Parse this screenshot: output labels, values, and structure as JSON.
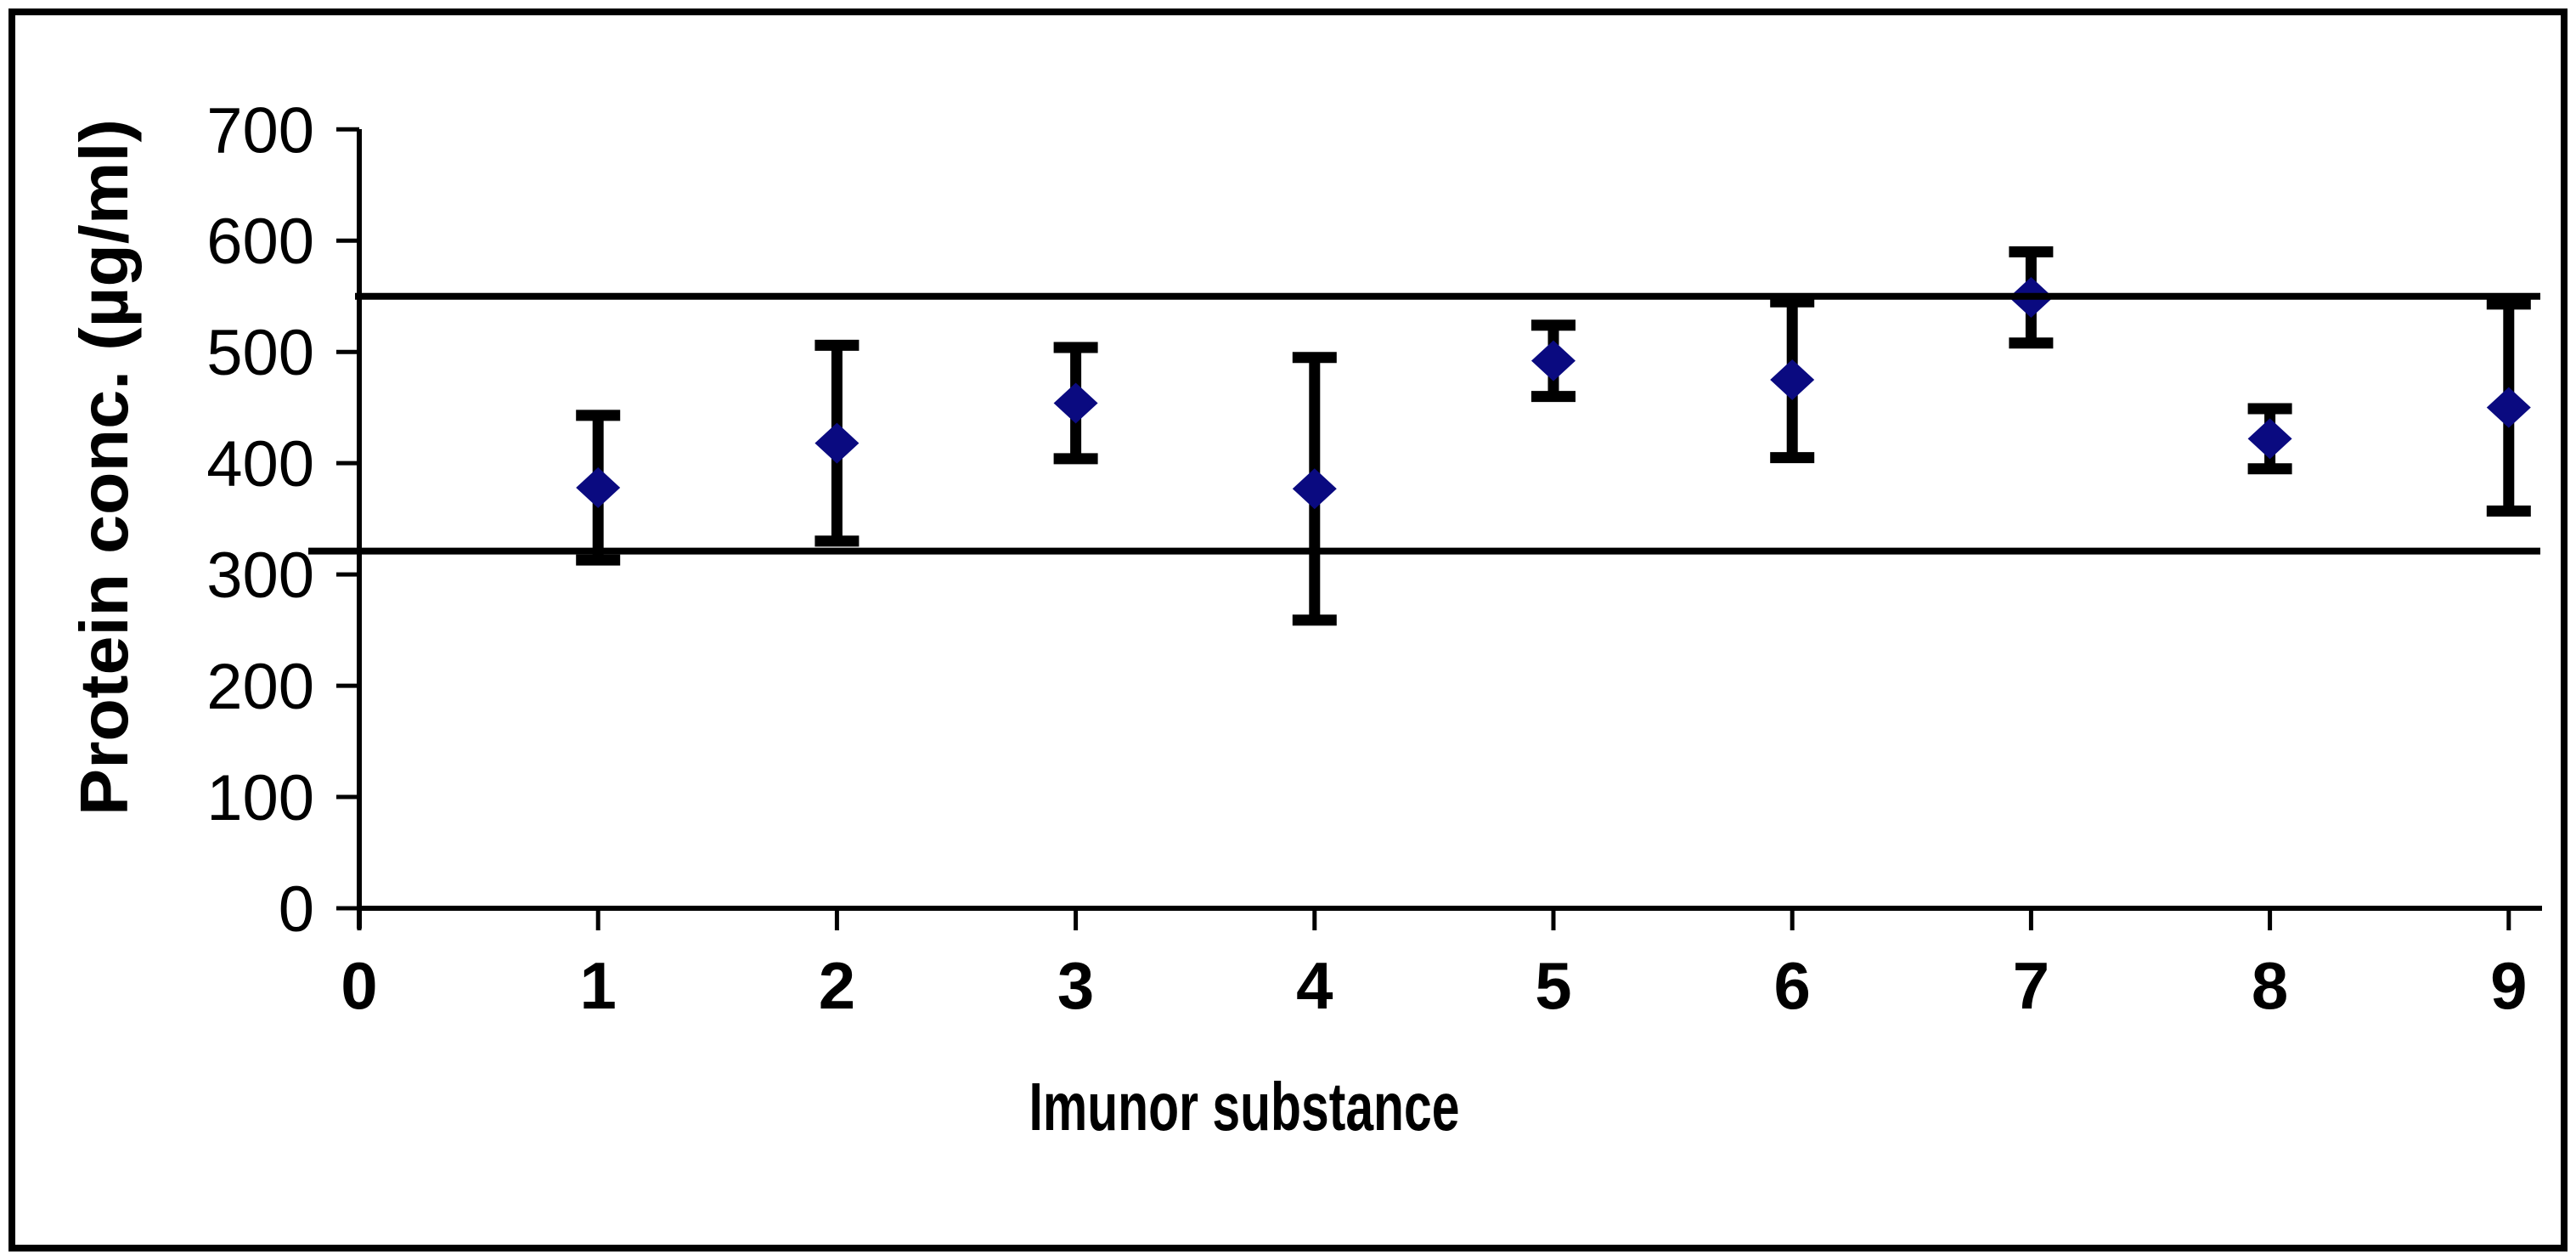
{
  "figure": {
    "background_color": "#ffffff",
    "border_color": "#000000",
    "axis_color": "#000000"
  },
  "chart_data": {
    "type": "scatter",
    "title": "",
    "xlabel": "Imunor substance",
    "ylabel": "Protein conc. (µg/ml)",
    "xlim": [
      0,
      9.14
    ],
    "ylim": [
      0,
      700
    ],
    "x_tick_labels": [
      "0",
      "1",
      "2",
      "3",
      "4",
      "5",
      "6",
      "7",
      "8",
      "9"
    ],
    "y_tick_labels": [
      "0",
      "100",
      "200",
      "300",
      "400",
      "500",
      "600",
      "700"
    ],
    "grid": false,
    "legend": false,
    "series": [
      {
        "name": "protein-concentration-points",
        "marker": "diamond",
        "marker_color": "#0a0a80",
        "error_bar_color": "#000000",
        "x": [
          1,
          2,
          3,
          4,
          5,
          6,
          7,
          8,
          9
        ],
        "y": [
          378,
          418,
          454,
          377,
          492,
          475,
          549,
          422,
          450
        ],
        "yerr": [
          65,
          88,
          50,
          118,
          32,
          70,
          41,
          27,
          93
        ]
      }
    ],
    "reference_lines": [
      {
        "name": "upper-limit-line",
        "y": 550,
        "color": "#000000"
      },
      {
        "name": "lower-limit-line",
        "y": 321,
        "color": "#000000"
      }
    ]
  }
}
